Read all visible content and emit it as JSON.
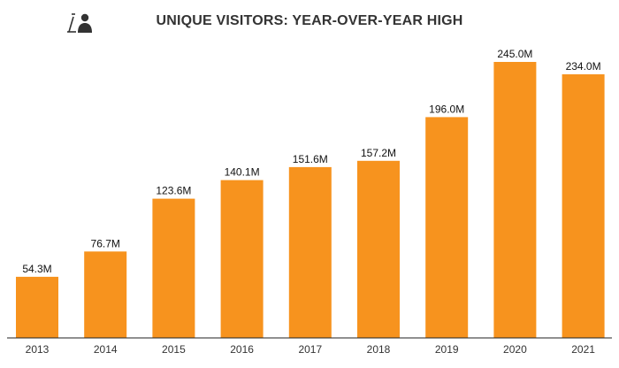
{
  "colors": {
    "bar": "#F7931E",
    "axis": "#222222",
    "logo": "#333333",
    "title": "#333333"
  },
  "logo": {
    "icon": "presenter-person-icon"
  },
  "chart_data": {
    "type": "bar",
    "title": "UNIQUE VISITORS: YEAR-OVER-YEAR HIGH",
    "xlabel": "",
    "ylabel": "",
    "categories": [
      "2013",
      "2014",
      "2015",
      "2016",
      "2017",
      "2018",
      "2019",
      "2020",
      "2021"
    ],
    "series": [
      {
        "values": [
          54.3,
          76.7,
          123.6,
          140.1,
          151.6,
          157.2,
          196.0,
          245.0,
          234.0
        ],
        "data_labels": [
          "54.3M",
          "76.7M",
          "123.6M",
          "140.1M",
          "151.6M",
          "157.2M",
          "196.0M",
          "245.0M",
          "234.0M"
        ]
      }
    ],
    "ylim": [
      0,
      245
    ],
    "grid": false,
    "legend": "none"
  }
}
